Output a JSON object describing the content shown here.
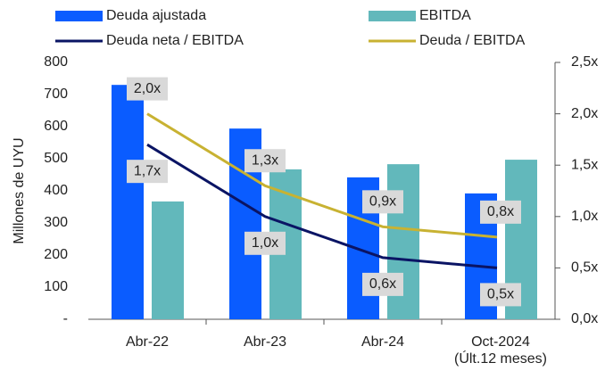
{
  "chart_data": {
    "type": "bar_line",
    "categories": [
      "Abr-22",
      "Abr-23",
      "Abr-24",
      "Oct-2024\n(Últ.12 meses)"
    ],
    "y_axis_label": "Millones de UYU",
    "ylim": [
      0,
      800
    ],
    "yticks": [
      {
        "value": 0,
        "label": "-"
      },
      100,
      200,
      300,
      400,
      500,
      600,
      700,
      800
    ],
    "y2lim": [
      0,
      2.5
    ],
    "y2ticks": [
      {
        "value": 0,
        "label": "0,0x"
      },
      {
        "value": 0.5,
        "label": "0,5x"
      },
      {
        "value": 1,
        "label": "1,0x"
      },
      {
        "value": 1.5,
        "label": "1,5x"
      },
      {
        "value": 2,
        "label": "2,0x"
      },
      {
        "value": 2.5,
        "label": "2,5x"
      }
    ],
    "series": [
      {
        "name": "Deuda ajustada",
        "type": "bar",
        "color": "#0a5cff",
        "values": [
          730,
          594,
          442,
          392
        ]
      },
      {
        "name": "EBITDA",
        "type": "bar",
        "color": "#62b8bb",
        "values": [
          367,
          467,
          483,
          497
        ]
      },
      {
        "name": "Deuda neta / EBITDA",
        "type": "line",
        "axis": "y2",
        "color": "#0a1464",
        "values": [
          1.7,
          1.0,
          0.6,
          0.5
        ],
        "value_labels": [
          "1,7x",
          "1,0x",
          "0,6x",
          "0,5x"
        ]
      },
      {
        "name": "Deuda / EBITDA",
        "type": "line",
        "axis": "y2",
        "color": "#c8b232",
        "values": [
          2.0,
          1.3,
          0.9,
          0.8
        ],
        "value_labels": [
          "2,0x",
          "1,3x",
          "0,9x",
          "0,8x"
        ]
      }
    ]
  }
}
